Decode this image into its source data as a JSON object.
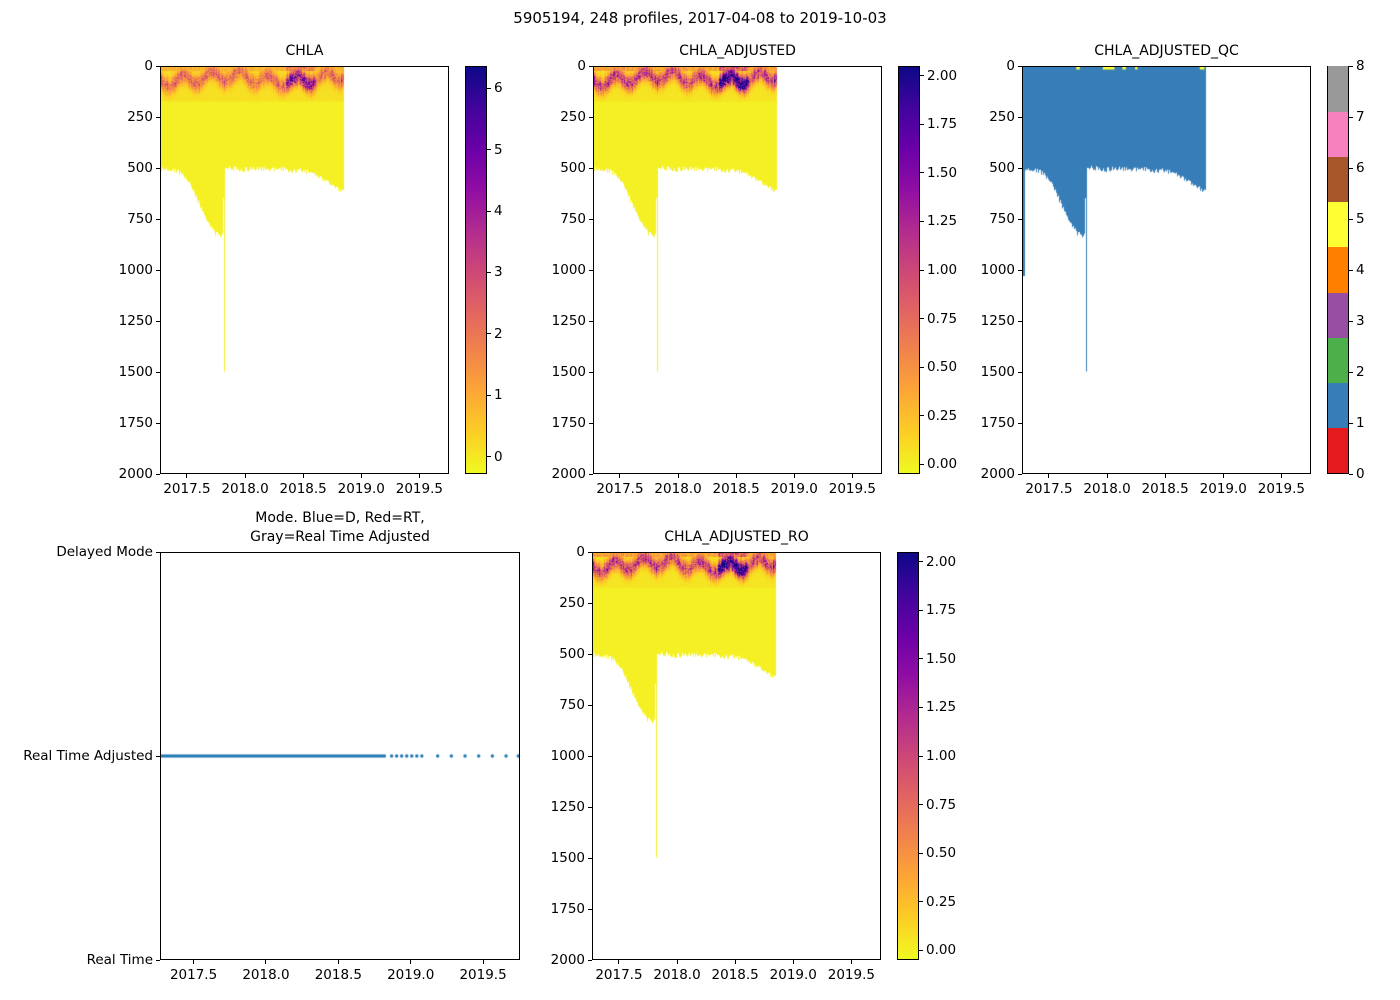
{
  "figure_title": "5905194, 248 profiles, 2017-04-08 to 2019-10-03",
  "colors": {
    "plasma_r_stops": [
      "#f0f921",
      "#fcce25",
      "#fca636",
      "#f1844b",
      "#e16462",
      "#cc4778",
      "#b12a90",
      "#8f0da4",
      "#6a00a8",
      "#41049d",
      "#0d0887"
    ],
    "set1_qc_palette": [
      "#e41a1c",
      "#377eb8",
      "#4daf4a",
      "#984ea3",
      "#ff7f00",
      "#ffff33",
      "#a65628",
      "#f781bf",
      "#999999"
    ],
    "qc_fill": "#377eb8",
    "qc_flag5": "#ffff33",
    "mode_dot": "#1f77b4",
    "body_yellow": "#f4f024",
    "axis": "#000000"
  },
  "axes_common": {
    "x_range": [
      2017.268,
      2019.755
    ],
    "x_tick_labels": [
      "2017.5",
      "2018.0",
      "2018.5",
      "2019.0",
      "2019.5"
    ],
    "x_tick_values": [
      2017.5,
      2018.0,
      2018.5,
      2019.0,
      2019.5
    ],
    "depth_range": [
      0,
      2000
    ],
    "depth_tick_labels": [
      "0",
      "250",
      "500",
      "750",
      "1000",
      "1250",
      "1500",
      "1750",
      "2000"
    ],
    "depth_tick_values": [
      0,
      250,
      500,
      750,
      1000,
      1250,
      1500,
      1750,
      2000
    ],
    "grid": false
  },
  "profile_bottom_envelope": [
    [
      2017.268,
      505
    ],
    [
      2017.32,
      498
    ],
    [
      2017.38,
      508
    ],
    [
      2017.44,
      522
    ],
    [
      2017.5,
      560
    ],
    [
      2017.56,
      625
    ],
    [
      2017.62,
      700
    ],
    [
      2017.66,
      745
    ],
    [
      2017.7,
      790
    ],
    [
      2017.74,
      818
    ],
    [
      2017.78,
      830
    ],
    [
      2017.8,
      833
    ],
    [
      2017.818,
      498
    ],
    [
      2017.83,
      492
    ],
    [
      2017.9,
      500
    ],
    [
      2018.0,
      506
    ],
    [
      2018.1,
      498
    ],
    [
      2018.2,
      508
    ],
    [
      2018.3,
      502
    ],
    [
      2018.4,
      510
    ],
    [
      2018.5,
      512
    ],
    [
      2018.58,
      525
    ],
    [
      2018.64,
      545
    ],
    [
      2018.7,
      565
    ],
    [
      2018.76,
      585
    ],
    [
      2018.82,
      605
    ],
    [
      2018.85,
      618
    ]
  ],
  "chart_data": [
    {
      "id": "chla",
      "type": "heatmap",
      "title": "CHLA",
      "data_time_extent": [
        2017.268,
        2018.85
      ],
      "deep_spike": {
        "time": 2017.81,
        "depth": 1500
      },
      "value_scale": 2.1,
      "surface_bloom_band": {
        "depth_center_m": 60,
        "depth_max_m": 130,
        "peak_chla_range": [
          1.6,
          3.4
        ],
        "hotspot_time": [
          2018.35,
          2018.6
        ],
        "hotspot_peak_chla": 4.5
      },
      "colorbar": {
        "colormap": "plasma_r",
        "tick_labels": [
          "0",
          "1",
          "2",
          "3",
          "4",
          "5",
          "6"
        ],
        "tick_values": [
          0,
          1,
          2,
          3,
          4,
          5,
          6
        ],
        "vmin": -0.28,
        "vmax": 6.36
      }
    },
    {
      "id": "chla_adjusted",
      "type": "heatmap",
      "title": "CHLA_ADJUSTED",
      "data_time_extent": [
        2017.268,
        2018.85
      ],
      "deep_spike": {
        "time": 2017.81,
        "depth": 1500
      },
      "value_scale": 1.0,
      "surface_bloom_band": {
        "depth_center_m": 60,
        "depth_max_m": 130,
        "peak_chla_range": [
          0.75,
          1.6
        ],
        "hotspot_time": [
          2018.35,
          2018.6
        ],
        "hotspot_peak_chla": 2.2
      },
      "colorbar": {
        "colormap": "plasma_r",
        "tick_labels": [
          "0.00",
          "0.25",
          "0.50",
          "0.75",
          "1.00",
          "1.25",
          "1.50",
          "1.75",
          "2.00"
        ],
        "tick_values": [
          0,
          0.25,
          0.5,
          0.75,
          1.0,
          1.25,
          1.5,
          1.75,
          2.0
        ],
        "vmin": -0.05,
        "vmax": 2.05
      }
    },
    {
      "id": "chla_adjusted_qc",
      "type": "heatmap_discrete",
      "title": "CHLA_ADJUSTED_QC",
      "data_time_extent": [
        2017.268,
        2018.85
      ],
      "deep_spike": {
        "time": 2017.81,
        "depth": 1500
      },
      "dominant_flag": 1,
      "left_edge_deep_profile": {
        "time": 2017.268,
        "depth": 1030
      },
      "flag5_marks_time_spans": [
        [
          2017.73,
          2017.76
        ],
        [
          2017.96,
          2018.06
        ],
        [
          2018.13,
          2018.16
        ],
        [
          2018.24,
          2018.26
        ],
        [
          2018.8,
          2018.84
        ]
      ],
      "colorbar": {
        "colormap": "Set1",
        "tick_labels": [
          "0",
          "1",
          "2",
          "3",
          "4",
          "5",
          "6",
          "7",
          "8"
        ],
        "tick_values": [
          0,
          1,
          2,
          3,
          4,
          5,
          6,
          7,
          8
        ],
        "vmin": 0,
        "vmax": 8,
        "n_segments": 9
      }
    },
    {
      "id": "mode",
      "type": "scatter",
      "title_line1": "Mode. Blue=D, Red=RT,",
      "title_line2": "Gray=Real Time Adjusted",
      "y_categories": [
        "Delayed Mode",
        "Real Time Adjusted",
        "Real Time"
      ],
      "series_level": "Real Time Adjusted",
      "solid_extent": [
        2017.268,
        2018.83
      ],
      "medium_dots": [
        2018.87,
        2018.905,
        2018.94,
        2018.975,
        2019.01,
        2019.045,
        2019.08
      ],
      "sparse_dots": [
        2019.19,
        2019.285,
        2019.38,
        2019.475,
        2019.57,
        2019.665,
        2019.75
      ]
    },
    {
      "id": "chla_adjusted_ro",
      "type": "heatmap",
      "title": "CHLA_ADJUSTED_RO",
      "data_time_extent": [
        2017.268,
        2018.85
      ],
      "deep_spike": {
        "time": 2017.81,
        "depth": 1500
      },
      "value_scale": 1.0,
      "surface_bloom_band": {
        "depth_center_m": 60,
        "depth_max_m": 130,
        "peak_chla_range": [
          0.75,
          1.6
        ],
        "hotspot_time": [
          2018.35,
          2018.6
        ],
        "hotspot_peak_chla": 2.2
      },
      "colorbar": {
        "colormap": "plasma_r",
        "tick_labels": [
          "0.00",
          "0.25",
          "0.50",
          "0.75",
          "1.00",
          "1.25",
          "1.50",
          "1.75",
          "2.00"
        ],
        "tick_values": [
          0,
          0.25,
          0.5,
          0.75,
          1.0,
          1.25,
          1.5,
          1.75,
          2.0
        ],
        "vmin": -0.05,
        "vmax": 2.05
      }
    }
  ]
}
